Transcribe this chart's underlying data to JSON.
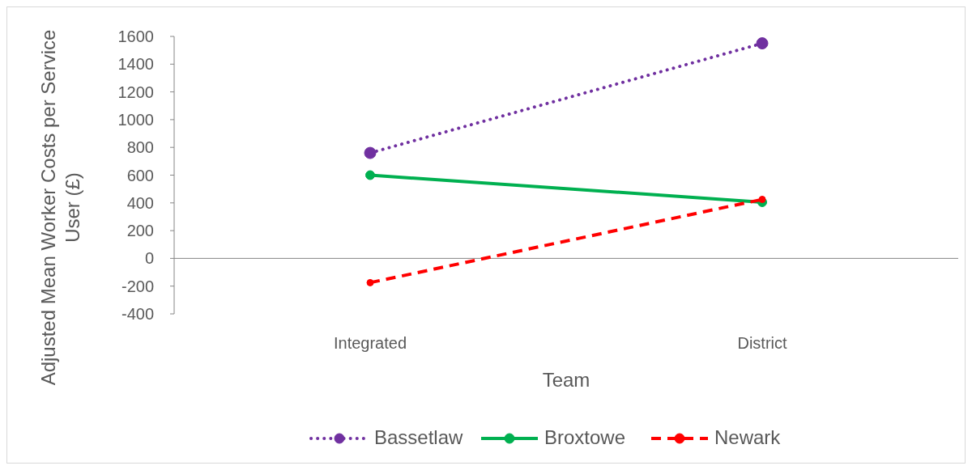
{
  "chart_data": {
    "type": "line",
    "xlabel": "Team",
    "ylabel": "Adjusted Mean Worker Costs per Service User (£)",
    "categories": [
      "Integrated",
      "District"
    ],
    "series": [
      {
        "name": "Bassetlaw",
        "color": "#7030a0",
        "values": [
          760,
          1550
        ],
        "line_style": "dotted"
      },
      {
        "name": "Broxtowe",
        "color": "#00b050",
        "values": [
          600,
          405
        ],
        "line_style": "solid"
      },
      {
        "name": "Newark",
        "color": "#ff0000",
        "values": [
          -175,
          425
        ],
        "line_style": "dashed"
      }
    ],
    "ylim": [
      -400,
      1600
    ],
    "yticks": [
      -400,
      -200,
      0,
      200,
      400,
      600,
      800,
      1000,
      1200,
      1400,
      1600
    ],
    "legend": "bottom",
    "marker": "circle"
  }
}
